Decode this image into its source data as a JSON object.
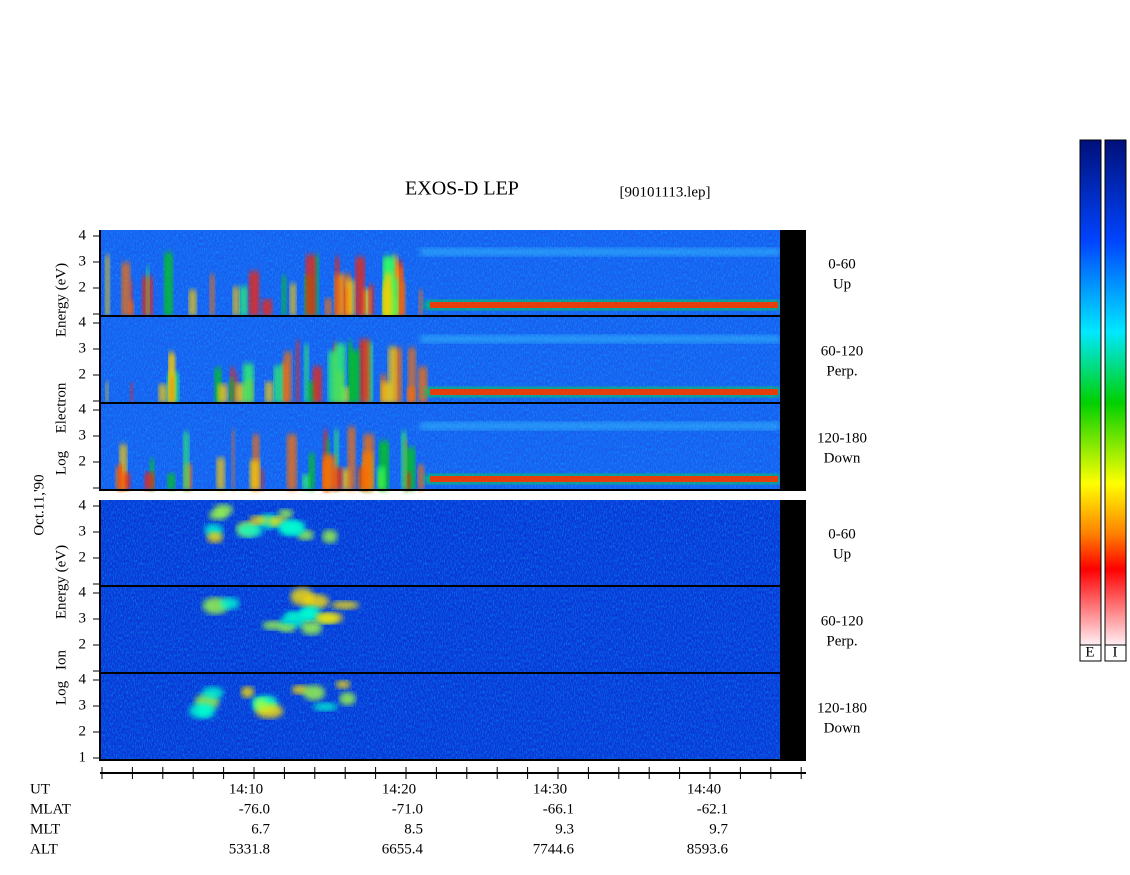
{
  "header": {
    "title": "EXOS-D LEP",
    "file": "[90101113.lep]"
  },
  "date": "Oct.11,'90",
  "electron": {
    "ylabel": [
      "Log",
      "Electron",
      "Energy (eV)"
    ],
    "panels": [
      {
        "ticks": [
          2,
          3,
          4
        ],
        "angle": "0-60",
        "direction": "Up"
      },
      {
        "ticks": [
          2,
          3,
          4
        ],
        "angle": "60-120",
        "direction": "Perp."
      },
      {
        "ticks": [
          2,
          3,
          4
        ],
        "angle": "120-180",
        "direction": "Down"
      }
    ]
  },
  "ion": {
    "ylabel": [
      "Log",
      "Ion",
      "Energy (eV)"
    ],
    "panels": [
      {
        "ticks": [
          2,
          3,
          4
        ],
        "angle": "0-60",
        "direction": "Up"
      },
      {
        "ticks": [
          2,
          3,
          4
        ],
        "angle": "60-120",
        "direction": "Perp."
      },
      {
        "ticks": [
          1,
          2,
          3,
          4
        ],
        "angle": "120-180",
        "direction": "Down"
      }
    ]
  },
  "ephemeris": {
    "labels": [
      "UT",
      "MLAT",
      "MLT",
      "ALT"
    ],
    "columns": [
      [
        "14:10",
        "-76.0",
        "6.7",
        "5331.8"
      ],
      [
        "14:20",
        "-71.0",
        "8.5",
        "6655.4"
      ],
      [
        "14:30",
        "-66.1",
        "9.3",
        "7744.6"
      ],
      [
        "14:40",
        "-62.1",
        "9.7",
        "8593.6"
      ]
    ]
  },
  "colorbar": {
    "labels": [
      "E",
      "I"
    ]
  }
}
